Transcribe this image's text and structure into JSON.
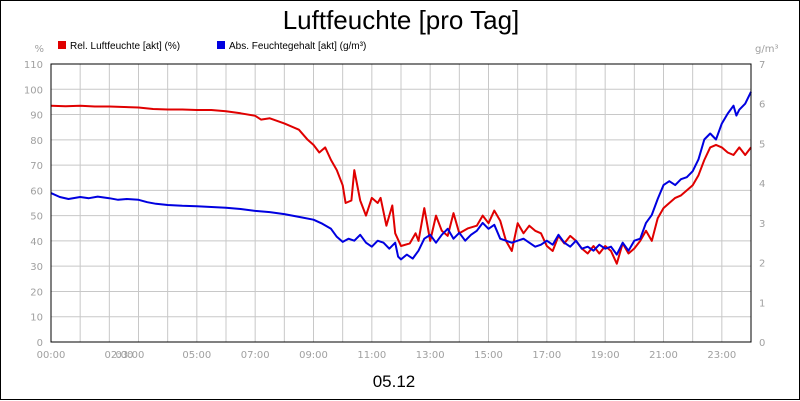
{
  "chart_data": {
    "type": "line",
    "title": "Luftfeuchte [pro Tag]",
    "date_label": "05.12",
    "y_left": {
      "unit": "%",
      "ticks": [
        0,
        10,
        20,
        30,
        40,
        50,
        60,
        70,
        80,
        90,
        100,
        110
      ],
      "range": [
        0,
        110
      ]
    },
    "y_right": {
      "unit": "g/m³",
      "ticks": [
        0,
        1,
        2,
        3,
        4,
        5,
        6,
        7
      ],
      "range": [
        0,
        7
      ]
    },
    "x_range_hours": [
      0,
      24
    ],
    "x_ticks": [
      {
        "label": "00:00",
        "h": 0
      },
      {
        "label": "02:00",
        "h": 2
      },
      {
        "label": "03:00",
        "h": 3
      },
      {
        "label": "05:00",
        "h": 5
      },
      {
        "label": "07:00",
        "h": 7
      },
      {
        "label": "09:00",
        "h": 9
      },
      {
        "label": "11:00",
        "h": 11
      },
      {
        "label": "13:00",
        "h": 13
      },
      {
        "label": "15:00",
        "h": 15
      },
      {
        "label": "17:00",
        "h": 17
      },
      {
        "label": "19:00",
        "h": 19
      },
      {
        "label": "21:00",
        "h": 21
      },
      {
        "label": "23:00",
        "h": 23
      }
    ],
    "grid": true,
    "legend_position": "top-left",
    "series": [
      {
        "name": "Rel. Luftfeuchte [akt] (%)",
        "axis": "left",
        "color": "#e00000",
        "points": [
          [
            0.0,
            93.5
          ],
          [
            0.5,
            93.3
          ],
          [
            1.0,
            93.5
          ],
          [
            1.5,
            93.2
          ],
          [
            2.0,
            93.2
          ],
          [
            2.5,
            93.0
          ],
          [
            3.0,
            92.8
          ],
          [
            3.5,
            92.2
          ],
          [
            4.0,
            92.0
          ],
          [
            4.5,
            92.0
          ],
          [
            5.0,
            91.8
          ],
          [
            5.5,
            91.8
          ],
          [
            6.0,
            91.3
          ],
          [
            6.5,
            90.5
          ],
          [
            7.0,
            89.5
          ],
          [
            7.2,
            88.0
          ],
          [
            7.5,
            88.5
          ],
          [
            8.0,
            86.5
          ],
          [
            8.5,
            84.0
          ],
          [
            8.8,
            80.0
          ],
          [
            9.0,
            78.0
          ],
          [
            9.2,
            75.0
          ],
          [
            9.4,
            77.0
          ],
          [
            9.6,
            72.0
          ],
          [
            9.8,
            68.0
          ],
          [
            10.0,
            62.0
          ],
          [
            10.1,
            55.0
          ],
          [
            10.3,
            56.0
          ],
          [
            10.4,
            68.0
          ],
          [
            10.6,
            56.0
          ],
          [
            10.8,
            50.0
          ],
          [
            11.0,
            57.0
          ],
          [
            11.2,
            55.0
          ],
          [
            11.3,
            57.0
          ],
          [
            11.5,
            46.0
          ],
          [
            11.6,
            50.0
          ],
          [
            11.7,
            54.0
          ],
          [
            11.8,
            43.0
          ],
          [
            12.0,
            38.0
          ],
          [
            12.3,
            39.0
          ],
          [
            12.5,
            43.0
          ],
          [
            12.6,
            40.0
          ],
          [
            12.8,
            53.0
          ],
          [
            13.0,
            40.0
          ],
          [
            13.2,
            50.0
          ],
          [
            13.4,
            44.0
          ],
          [
            13.6,
            42.0
          ],
          [
            13.8,
            51.0
          ],
          [
            14.0,
            43.0
          ],
          [
            14.3,
            45.0
          ],
          [
            14.6,
            46.0
          ],
          [
            14.8,
            50.0
          ],
          [
            15.0,
            47.0
          ],
          [
            15.2,
            52.0
          ],
          [
            15.4,
            48.0
          ],
          [
            15.6,
            40.0
          ],
          [
            15.8,
            36.0
          ],
          [
            16.0,
            47.0
          ],
          [
            16.2,
            43.0
          ],
          [
            16.4,
            46.0
          ],
          [
            16.6,
            44.0
          ],
          [
            16.8,
            43.0
          ],
          [
            17.0,
            38.0
          ],
          [
            17.2,
            36.0
          ],
          [
            17.4,
            42.0
          ],
          [
            17.6,
            39.0
          ],
          [
            17.8,
            42.0
          ],
          [
            18.0,
            40.0
          ],
          [
            18.2,
            37.0
          ],
          [
            18.4,
            35.0
          ],
          [
            18.6,
            38.0
          ],
          [
            18.8,
            35.0
          ],
          [
            19.0,
            38.0
          ],
          [
            19.2,
            36.0
          ],
          [
            19.4,
            31.0
          ],
          [
            19.6,
            39.0
          ],
          [
            19.8,
            35.0
          ],
          [
            20.0,
            37.0
          ],
          [
            20.2,
            40.0
          ],
          [
            20.4,
            44.0
          ],
          [
            20.6,
            40.0
          ],
          [
            20.8,
            49.0
          ],
          [
            21.0,
            53.0
          ],
          [
            21.2,
            55.0
          ],
          [
            21.4,
            57.0
          ],
          [
            21.6,
            58.0
          ],
          [
            21.8,
            60.0
          ],
          [
            22.0,
            62.0
          ],
          [
            22.2,
            66.0
          ],
          [
            22.4,
            72.0
          ],
          [
            22.6,
            77.0
          ],
          [
            22.8,
            78.0
          ],
          [
            23.0,
            77.0
          ],
          [
            23.2,
            75.0
          ],
          [
            23.4,
            74.0
          ],
          [
            23.6,
            77.0
          ],
          [
            23.8,
            74.0
          ],
          [
            24.0,
            77.0
          ]
        ]
      },
      {
        "name": "Abs. Feuchtegehalt [akt] (g/m³)",
        "axis": "right",
        "color": "#0000e0",
        "points": [
          [
            0.0,
            3.75
          ],
          [
            0.3,
            3.65
          ],
          [
            0.6,
            3.6
          ],
          [
            1.0,
            3.65
          ],
          [
            1.3,
            3.62
          ],
          [
            1.6,
            3.66
          ],
          [
            2.0,
            3.62
          ],
          [
            2.3,
            3.58
          ],
          [
            2.6,
            3.6
          ],
          [
            3.0,
            3.58
          ],
          [
            3.3,
            3.52
          ],
          [
            3.6,
            3.48
          ],
          [
            4.0,
            3.45
          ],
          [
            4.5,
            3.43
          ],
          [
            5.0,
            3.42
          ],
          [
            5.5,
            3.4
          ],
          [
            6.0,
            3.38
          ],
          [
            6.5,
            3.35
          ],
          [
            7.0,
            3.3
          ],
          [
            7.5,
            3.27
          ],
          [
            8.0,
            3.22
          ],
          [
            8.5,
            3.15
          ],
          [
            9.0,
            3.08
          ],
          [
            9.3,
            2.98
          ],
          [
            9.6,
            2.85
          ],
          [
            9.8,
            2.65
          ],
          [
            10.0,
            2.52
          ],
          [
            10.2,
            2.6
          ],
          [
            10.4,
            2.55
          ],
          [
            10.6,
            2.7
          ],
          [
            10.8,
            2.5
          ],
          [
            11.0,
            2.4
          ],
          [
            11.2,
            2.55
          ],
          [
            11.4,
            2.5
          ],
          [
            11.6,
            2.35
          ],
          [
            11.8,
            2.5
          ],
          [
            11.9,
            2.15
          ],
          [
            12.0,
            2.08
          ],
          [
            12.2,
            2.2
          ],
          [
            12.4,
            2.1
          ],
          [
            12.6,
            2.3
          ],
          [
            12.8,
            2.6
          ],
          [
            13.0,
            2.7
          ],
          [
            13.2,
            2.5
          ],
          [
            13.4,
            2.7
          ],
          [
            13.6,
            2.85
          ],
          [
            13.8,
            2.6
          ],
          [
            14.0,
            2.75
          ],
          [
            14.2,
            2.55
          ],
          [
            14.4,
            2.7
          ],
          [
            14.6,
            2.8
          ],
          [
            14.8,
            3.0
          ],
          [
            15.0,
            2.85
          ],
          [
            15.2,
            2.95
          ],
          [
            15.4,
            2.6
          ],
          [
            15.6,
            2.55
          ],
          [
            15.8,
            2.5
          ],
          [
            16.0,
            2.55
          ],
          [
            16.2,
            2.6
          ],
          [
            16.4,
            2.5
          ],
          [
            16.6,
            2.4
          ],
          [
            16.8,
            2.45
          ],
          [
            17.0,
            2.55
          ],
          [
            17.2,
            2.45
          ],
          [
            17.4,
            2.7
          ],
          [
            17.6,
            2.5
          ],
          [
            17.8,
            2.4
          ],
          [
            18.0,
            2.55
          ],
          [
            18.2,
            2.35
          ],
          [
            18.4,
            2.4
          ],
          [
            18.6,
            2.3
          ],
          [
            18.8,
            2.45
          ],
          [
            19.0,
            2.35
          ],
          [
            19.2,
            2.4
          ],
          [
            19.4,
            2.2
          ],
          [
            19.6,
            2.5
          ],
          [
            19.8,
            2.3
          ],
          [
            20.0,
            2.55
          ],
          [
            20.2,
            2.6
          ],
          [
            20.4,
            3.0
          ],
          [
            20.6,
            3.2
          ],
          [
            20.8,
            3.6
          ],
          [
            21.0,
            3.95
          ],
          [
            21.2,
            4.05
          ],
          [
            21.4,
            3.95
          ],
          [
            21.6,
            4.1
          ],
          [
            21.8,
            4.15
          ],
          [
            22.0,
            4.3
          ],
          [
            22.2,
            4.6
          ],
          [
            22.4,
            5.1
          ],
          [
            22.6,
            5.25
          ],
          [
            22.8,
            5.1
          ],
          [
            23.0,
            5.5
          ],
          [
            23.2,
            5.75
          ],
          [
            23.4,
            5.95
          ],
          [
            23.5,
            5.7
          ],
          [
            23.6,
            5.85
          ],
          [
            23.8,
            6.0
          ],
          [
            24.0,
            6.3
          ]
        ]
      }
    ]
  }
}
